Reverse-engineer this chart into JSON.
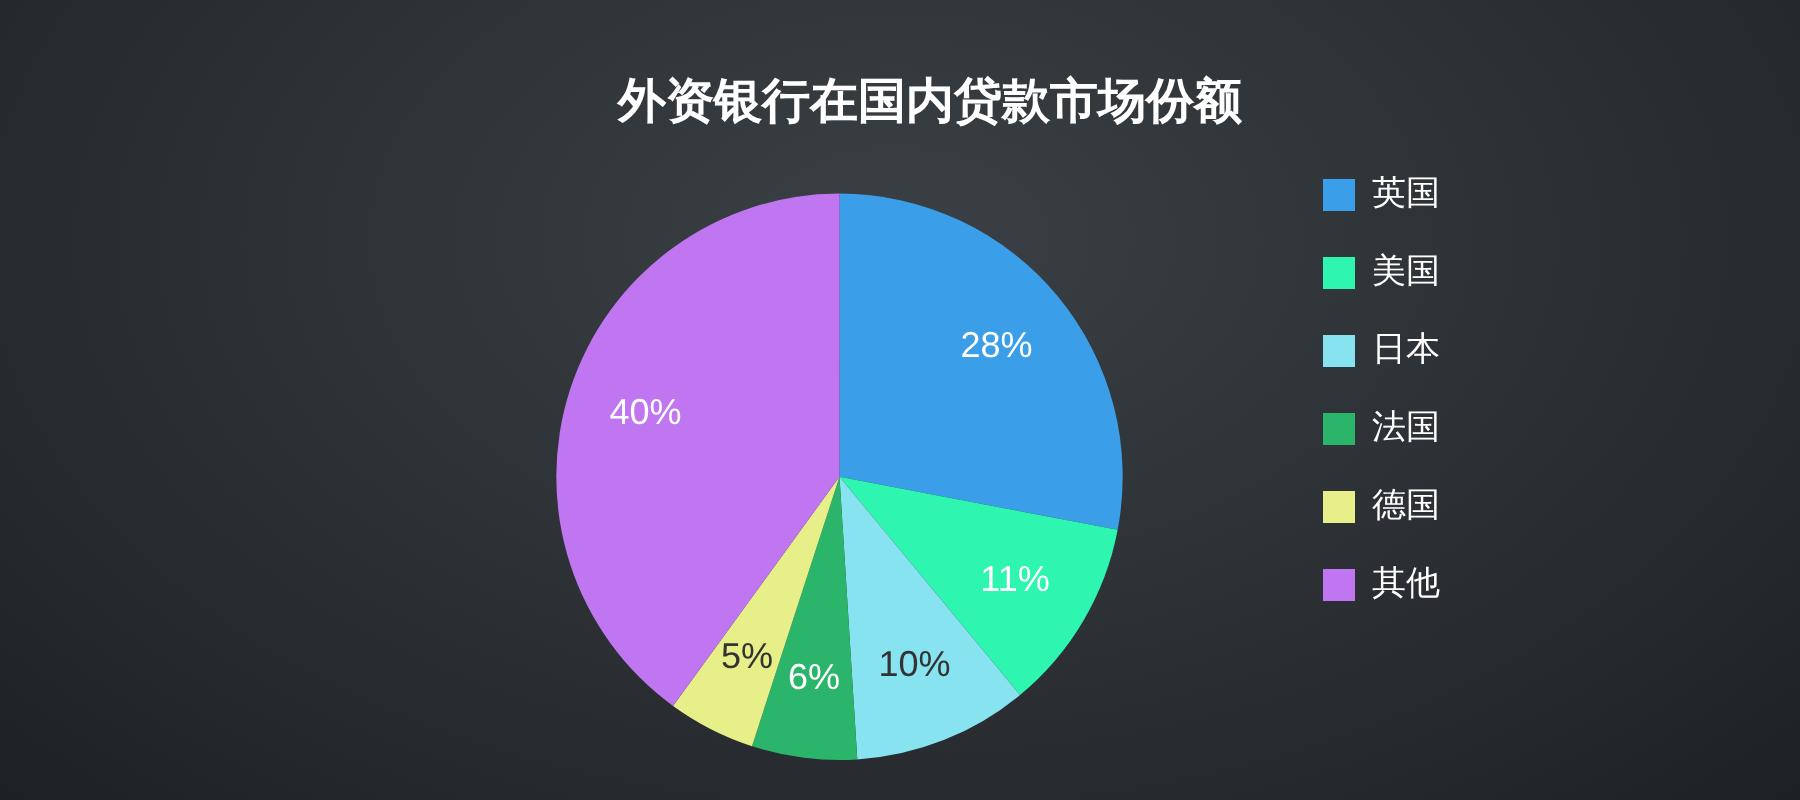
{
  "chart_data": {
    "type": "pie",
    "title": "外资银行在国内贷款市场份额",
    "categories": [
      "英国",
      "美国",
      "日本",
      "法国",
      "德国",
      "其他"
    ],
    "values": [
      28,
      11,
      10,
      6,
      5,
      40
    ],
    "value_labels": [
      "28%",
      "11%",
      "10%",
      "6%",
      "5%",
      "40%"
    ],
    "colors": [
      "#3a9ee8",
      "#2ef5b0",
      "#86e3ef",
      "#2bb56a",
      "#e6ef88",
      "#c076f0"
    ],
    "legend": "right"
  }
}
